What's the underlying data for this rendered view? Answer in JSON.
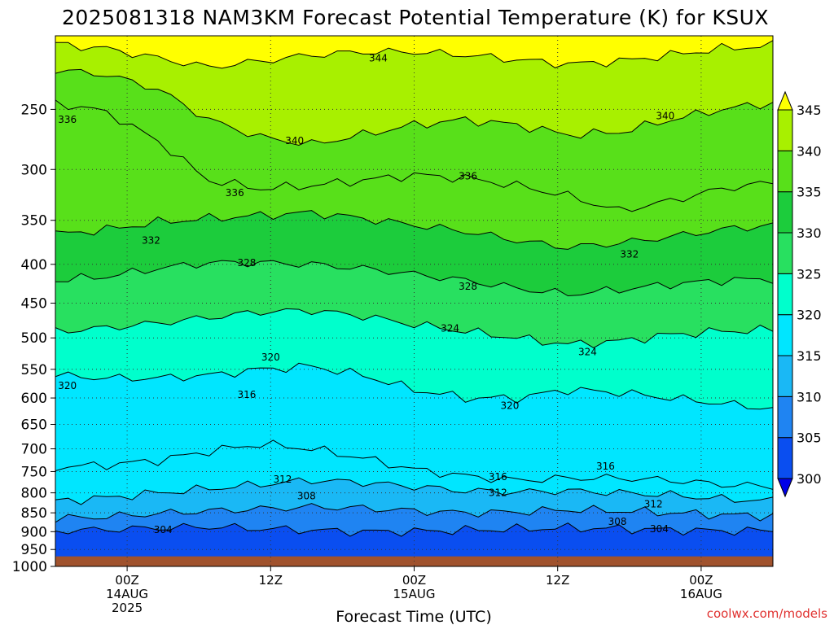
{
  "chart_data": {
    "type": "contour",
    "title": "2025081318 NAM3KM Forecast Potential Temperature (K) for KSUX",
    "xlabel": "Forecast Time (UTC)",
    "credit": "coolwx.com/models",
    "x_ticks": [
      {
        "l1": "00Z",
        "l2": "14AUG",
        "l3": "2025",
        "hour": 6
      },
      {
        "l1": "12Z",
        "l2": "",
        "l3": "",
        "hour": 18
      },
      {
        "l1": "00Z",
        "l2": "15AUG",
        "l3": "",
        "hour": 30
      },
      {
        "l1": "12Z",
        "l2": "",
        "l3": "",
        "hour": 42
      },
      {
        "l1": "00Z",
        "l2": "16AUG",
        "l3": "",
        "hour": 54
      }
    ],
    "x_range_hours": [
      0,
      60
    ],
    "y_axis": {
      "type": "log-pressure",
      "unit": "hPa",
      "reversed": true,
      "range": [
        200,
        1000
      ],
      "ticks": [
        "250",
        "300",
        "350",
        "400",
        "450",
        "500",
        "550",
        "600",
        "650",
        "700",
        "750",
        "800",
        "850",
        "900",
        "950",
        "1000"
      ]
    },
    "surface_pressure_hPa": 970,
    "colorbar": {
      "levels": [
        "300",
        "305",
        "310",
        "315",
        "320",
        "325",
        "330",
        "335",
        "340",
        "345"
      ],
      "colors": [
        "#0000e8",
        "#0a4ef0",
        "#1f84f2",
        "#1ab8f5",
        "#00e6ff",
        "#00ffcc",
        "#28e060",
        "#1ccc3c",
        "#58e01a",
        "#a8f000",
        "#ffff00"
      ],
      "ground_color": "#a0522d"
    },
    "isentropes": [
      {
        "theta": 304,
        "p": [
          898,
          894,
          890,
          887,
          892,
          896,
          900,
          899,
          896,
          893,
          890,
          892,
          895,
          898,
          897
        ]
      },
      {
        "theta": 308,
        "p": [
          865,
          860,
          852,
          845,
          840,
          835,
          838,
          845,
          850,
          848,
          842,
          845,
          850,
          855,
          858
        ]
      },
      {
        "theta": 312,
        "p": [
          820,
          812,
          800,
          790,
          780,
          770,
          775,
          785,
          795,
          798,
          795,
          800,
          805,
          815,
          820
        ]
      },
      {
        "theta": 316,
        "p": [
          740,
          735,
          725,
          705,
          690,
          700,
          720,
          745,
          760,
          770,
          765,
          765,
          770,
          780,
          785
        ]
      },
      {
        "theta": 320,
        "p": [
          560,
          565,
          565,
          560,
          550,
          545,
          560,
          585,
          600,
          600,
          585,
          590,
          600,
          610,
          620
        ]
      },
      {
        "theta": 324,
        "p": [
          490,
          485,
          478,
          470,
          462,
          460,
          468,
          480,
          490,
          500,
          510,
          505,
          495,
          490,
          488
        ]
      },
      {
        "theta": 328,
        "p": [
          420,
          415,
          405,
          398,
          398,
          400,
          405,
          412,
          420,
          430,
          438,
          432,
          425,
          420,
          418
        ]
      },
      {
        "theta": 332,
        "p": [
          365,
          360,
          352,
          348,
          345,
          342,
          348,
          355,
          362,
          372,
          380,
          375,
          368,
          360,
          355
        ]
      },
      {
        "theta": 336,
        "p": [
          245,
          252,
          275,
          310,
          318,
          315,
          310,
          305,
          308,
          315,
          325,
          340,
          330,
          318,
          312
        ]
      },
      {
        "theta": 340,
        "p": [
          222,
          225,
          235,
          258,
          272,
          278,
          270,
          262,
          258,
          262,
          270,
          268,
          258,
          250,
          245
        ]
      },
      {
        "theta": 344,
        "p": [
          205,
          208,
          214,
          220,
          216,
          212,
          210,
          210,
          212,
          215,
          218,
          216,
          212,
          208,
          206
        ]
      }
    ],
    "contour_labels": [
      {
        "text": "344",
        "hour": 27,
        "p": 214
      },
      {
        "text": "340",
        "hour": 20,
        "p": 275
      },
      {
        "text": "340",
        "hour": 51,
        "p": 255
      },
      {
        "text": "336",
        "hour": 1,
        "p": 258
      },
      {
        "text": "336",
        "hour": 15,
        "p": 322
      },
      {
        "text": "336",
        "hour": 34.5,
        "p": 306
      },
      {
        "text": "332",
        "hour": 8,
        "p": 372
      },
      {
        "text": "332",
        "hour": 48,
        "p": 388
      },
      {
        "text": "328",
        "hour": 16,
        "p": 398
      },
      {
        "text": "328",
        "hour": 34.5,
        "p": 428
      },
      {
        "text": "324",
        "hour": 33,
        "p": 486
      },
      {
        "text": "324",
        "hour": 44.5,
        "p": 522
      },
      {
        "text": "320",
        "hour": 18,
        "p": 530
      },
      {
        "text": "320",
        "hour": 1,
        "p": 578
      },
      {
        "text": "320",
        "hour": 38,
        "p": 614
      },
      {
        "text": "316",
        "hour": 16,
        "p": 594
      },
      {
        "text": "316",
        "hour": 37,
        "p": 762
      },
      {
        "text": "316",
        "hour": 46,
        "p": 738
      },
      {
        "text": "312",
        "hour": 19,
        "p": 768
      },
      {
        "text": "312",
        "hour": 37,
        "p": 800
      },
      {
        "text": "312",
        "hour": 50,
        "p": 828
      },
      {
        "text": "308",
        "hour": 21,
        "p": 808
      },
      {
        "text": "308",
        "hour": 47,
        "p": 873
      },
      {
        "text": "304",
        "hour": 9,
        "p": 895
      },
      {
        "text": "304",
        "hour": 50.5,
        "p": 893
      }
    ]
  }
}
